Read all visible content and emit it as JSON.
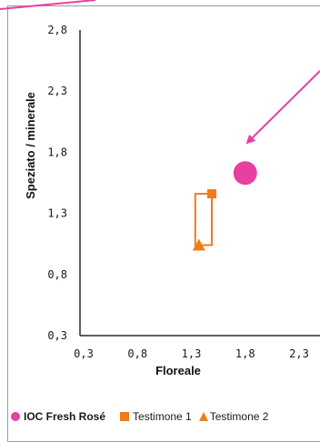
{
  "chart_data": {
    "type": "scatter",
    "xlabel": "Floreale",
    "ylabel": "Speziato / minerale",
    "xlim": [
      0.3,
      2.55
    ],
    "ylim": [
      0.3,
      2.8
    ],
    "x_ticks": [
      "0,3",
      "0,8",
      "1,3",
      "1,8",
      "2,3"
    ],
    "y_ticks": [
      "0,3",
      "0,8",
      "1,3",
      "1,8",
      "2,3",
      "2,8"
    ],
    "grid": false,
    "legend_position": "bottom",
    "series": [
      {
        "name": "IOC Fresh Rosé",
        "marker": "circle",
        "color": "#e83fa3",
        "points": [
          {
            "x": 1.8,
            "y": 1.63
          }
        ]
      },
      {
        "name": "Testimone 1",
        "marker": "square",
        "color": "#f07b1a",
        "points": [
          {
            "x": 1.49,
            "y": 1.46
          }
        ]
      },
      {
        "name": "Testimone 2",
        "marker": "triangle",
        "color": "#f07b1a",
        "points": [
          {
            "x": 1.37,
            "y": 1.04
          }
        ]
      }
    ],
    "connector": {
      "color": "#f07b1a",
      "from_series": "Testimone 2",
      "to_series": "Testimone 1"
    },
    "annotation_color": "#e83fa3"
  }
}
